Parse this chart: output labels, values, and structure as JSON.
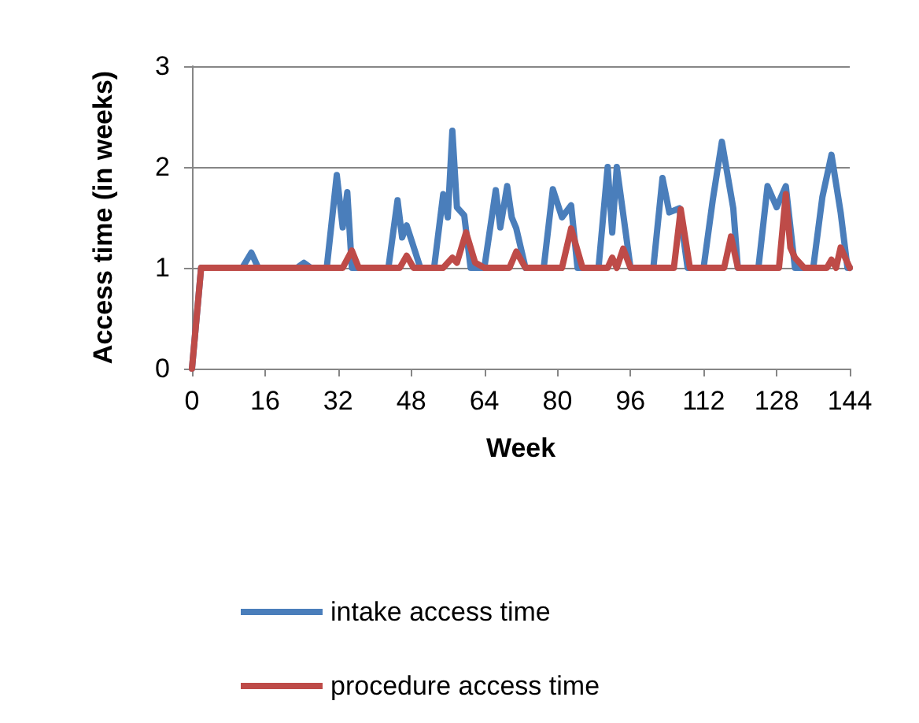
{
  "chart_data": {
    "type": "line",
    "xlabel": "Week",
    "ylabel": "Access time (in weeks)",
    "xlim": [
      0,
      144
    ],
    "xticks": [
      0,
      16,
      32,
      48,
      64,
      80,
      96,
      112,
      128,
      144
    ],
    "ylim": [
      0,
      3
    ],
    "yticks": [
      0,
      1,
      2,
      3
    ],
    "grid": "y",
    "legend": "bottom",
    "marker": "none",
    "line_style": "solid",
    "series": [
      {
        "name": "intake access time",
        "color": "#4a7ebb",
        "x": [
          0,
          2,
          11,
          13,
          14.5,
          23,
          24.5,
          26,
          29.5,
          31.7,
          33,
          34,
          35,
          43,
          45,
          46,
          47,
          50,
          53,
          55,
          56,
          57,
          58,
          59.6,
          61,
          64,
          66.5,
          67.5,
          69,
          70,
          71,
          73,
          77,
          79,
          81,
          83,
          84.4,
          89,
          91,
          92,
          93,
          96,
          101,
          103,
          104.5,
          106.7,
          108.5,
          112,
          114,
          116,
          118.5,
          119.5,
          124,
          126,
          128,
          130,
          132,
          136,
          138,
          140,
          142,
          143.5,
          144
        ],
        "values": [
          0,
          1,
          1,
          1.15,
          1,
          1,
          1.05,
          1,
          1,
          1.92,
          1.4,
          1.75,
          1,
          1,
          1.67,
          1.3,
          1.42,
          1,
          1,
          1.73,
          1.5,
          2.36,
          1.6,
          1.52,
          1,
          1,
          1.77,
          1.4,
          1.81,
          1.5,
          1.39,
          1,
          1,
          1.78,
          1.5,
          1.62,
          1,
          1,
          2.0,
          1.35,
          2.0,
          1,
          1,
          1.89,
          1.55,
          1.59,
          1,
          1,
          1.67,
          2.25,
          1.59,
          1,
          1,
          1.81,
          1.6,
          1.81,
          1,
          1,
          1.7,
          2.12,
          1.55,
          1,
          1
        ]
      },
      {
        "name": "procedure access time",
        "color": "#be4b48",
        "x": [
          0,
          2,
          33,
          35,
          36.5,
          45.5,
          47,
          48.5,
          55,
          57,
          58,
          60,
          62,
          64,
          69.5,
          71,
          73,
          81,
          83,
          85.5,
          91,
          92,
          93,
          94.4,
          96,
          105.5,
          107,
          109,
          116.5,
          118,
          119.5,
          128.5,
          130,
          131,
          132,
          134,
          139,
          140,
          141,
          142,
          144
        ],
        "values": [
          0,
          1,
          1,
          1.17,
          1,
          1,
          1.12,
          1,
          1,
          1.1,
          1.05,
          1.35,
          1.05,
          1,
          1,
          1.16,
          1,
          1,
          1.39,
          1,
          1,
          1.1,
          1,
          1.19,
          1,
          1,
          1.58,
          1,
          1,
          1.31,
          1,
          1,
          1.73,
          1.2,
          1.1,
          1,
          1,
          1.08,
          1,
          1.2,
          1
        ]
      }
    ]
  }
}
